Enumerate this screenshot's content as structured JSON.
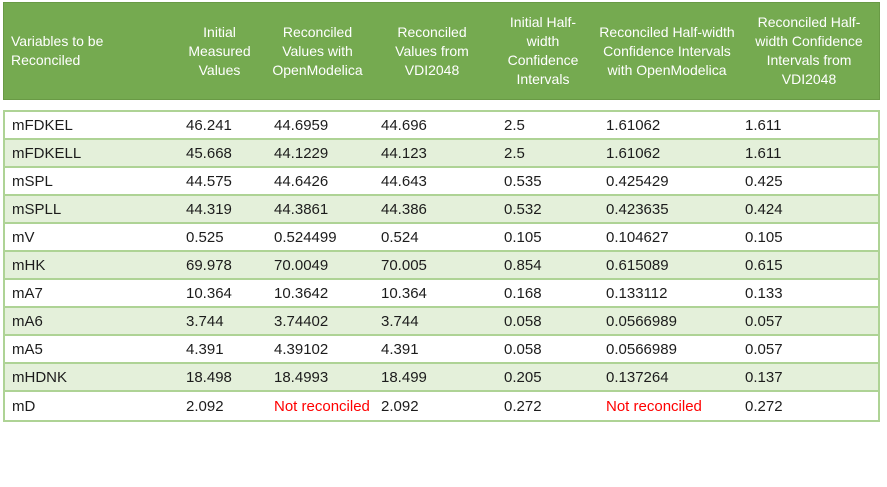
{
  "chart_data": {
    "type": "table",
    "not_reconciled_label": "Not reconciled",
    "columns": [
      "Variables to be Reconciled",
      "Initial Measured Values",
      "Reconciled Values with OpenModelica",
      "Reconciled Values from VDI2048",
      "Initial Half-width Confidence Intervals",
      "Reconciled Half-width Confidence Intervals with OpenModelica",
      "Reconciled Half-width Confidence Intervals from VDI2048"
    ],
    "rows": [
      [
        "mFDKEL",
        "46.241",
        "44.6959",
        "44.696",
        "2.5",
        "1.61062",
        "1.611"
      ],
      [
        "mFDKELL",
        "45.668",
        "44.1229",
        "44.123",
        "2.5",
        "1.61062",
        "1.611"
      ],
      [
        "mSPL",
        "44.575",
        "44.6426",
        "44.643",
        "0.535",
        "0.425429",
        "0.425"
      ],
      [
        "mSPLL",
        "44.319",
        "44.3861",
        "44.386",
        "0.532",
        "0.423635",
        "0.424"
      ],
      [
        "mV",
        "0.525",
        "0.524499",
        "0.524",
        "0.105",
        "0.104627",
        "0.105"
      ],
      [
        "mHK",
        "69.978",
        "70.0049",
        "70.005",
        "0.854",
        "0.615089",
        "0.615"
      ],
      [
        "mA7",
        "10.364",
        "10.3642",
        "10.364",
        "0.168",
        "0.133112",
        "0.133"
      ],
      [
        "mA6",
        "3.744",
        "3.74402",
        "3.744",
        "0.058",
        "0.0566989",
        "0.057"
      ],
      [
        "mA5",
        "4.391",
        "4.39102",
        "4.391",
        "0.058",
        "0.0566989",
        "0.057"
      ],
      [
        "mHDNK",
        "18.498",
        "18.4993",
        "18.499",
        "0.205",
        "0.137264",
        "0.137"
      ],
      [
        "mD",
        "2.092",
        "Not reconciled",
        "2.092",
        "0.272",
        "Not reconciled",
        "0.272"
      ]
    ],
    "layout": {
      "grid": "horizontal-only",
      "stripe_pattern": "alternating starting white",
      "header_position": "top"
    }
  },
  "colors": {
    "header_bg": "#75aa50",
    "header_text": "#ffffff",
    "stripe_bg": "#e4f0da",
    "border": "#aed395",
    "text": "#1c1c1c",
    "not_reconciled": "#ff0000"
  }
}
